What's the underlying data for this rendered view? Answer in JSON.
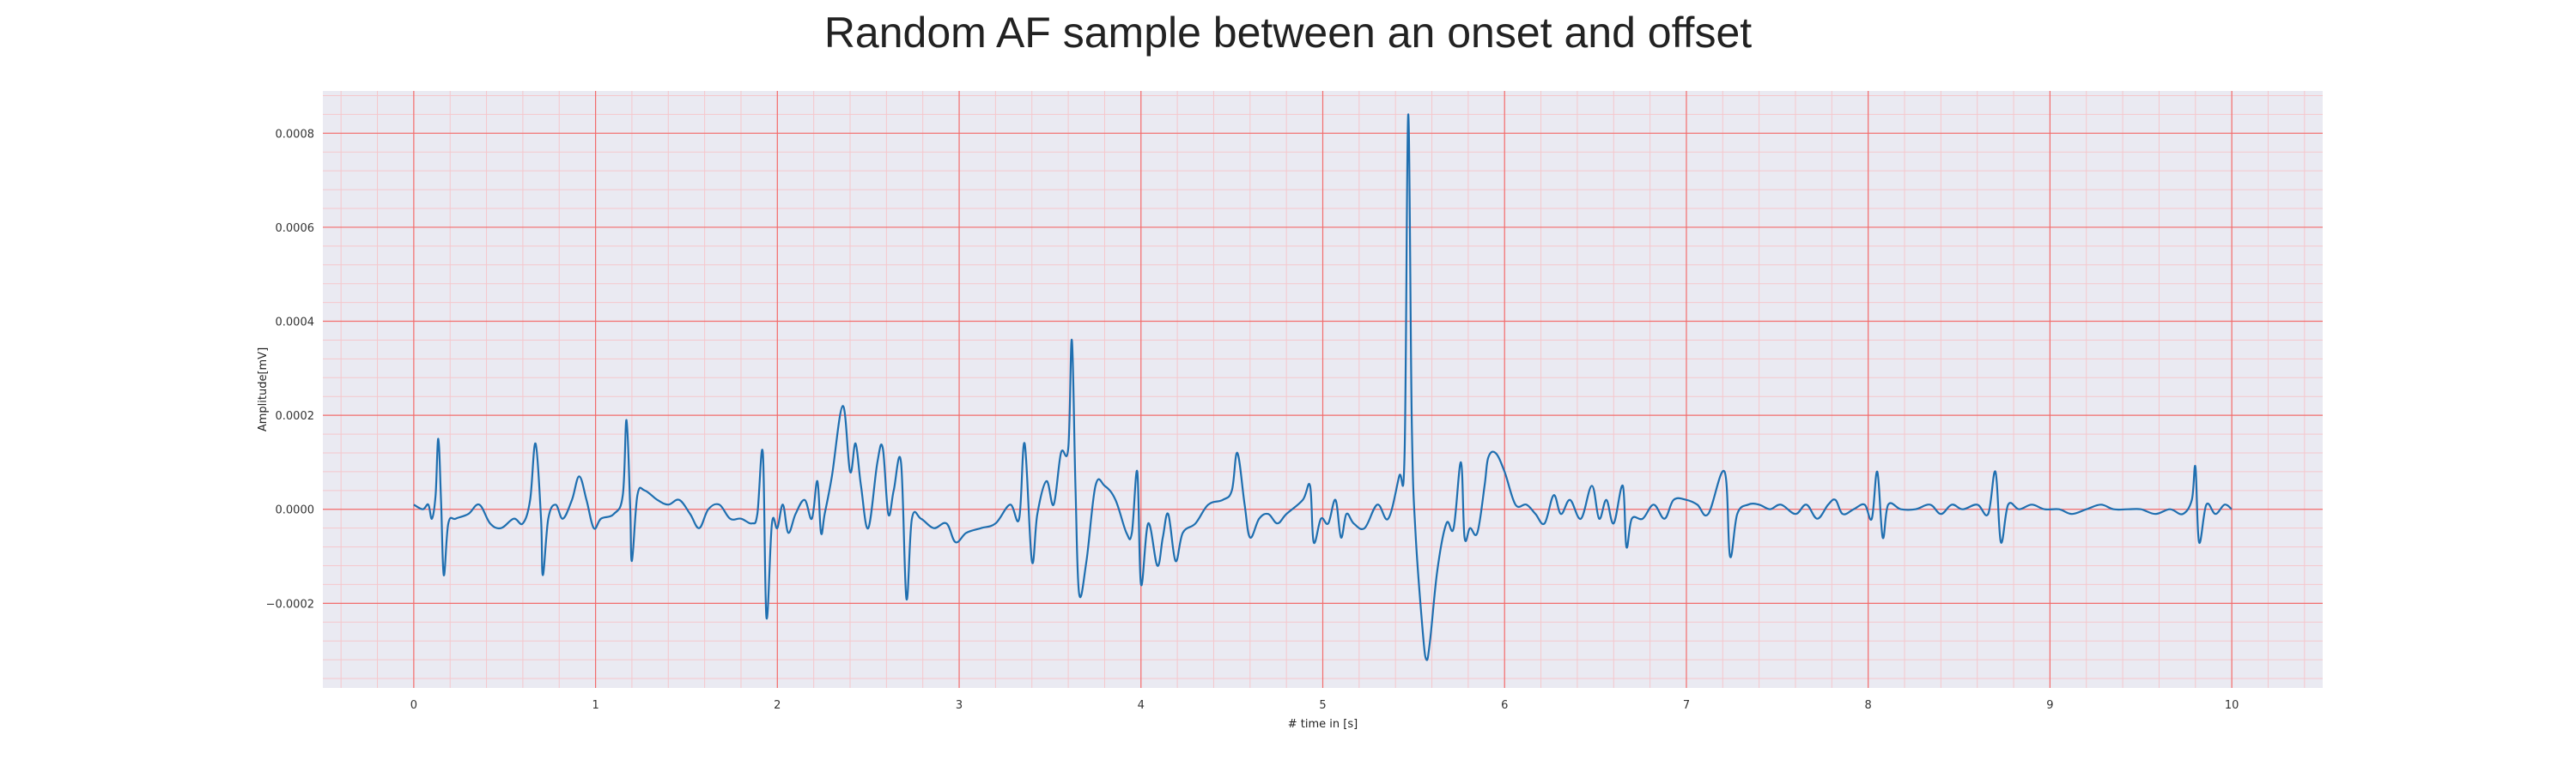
{
  "chart_data": {
    "type": "line",
    "title": "Random AF sample between an onset and offset",
    "xlabel": "# time in [s]",
    "ylabel": "Amplitude[mV]",
    "xlim": [
      -0.5,
      10.5
    ],
    "ylim": [
      -0.00038,
      0.00089
    ],
    "x_ticks": [
      0,
      1,
      2,
      3,
      4,
      5,
      6,
      7,
      8,
      9,
      10
    ],
    "x_tick_labels": [
      "0",
      "1",
      "2",
      "3",
      "4",
      "5",
      "6",
      "7",
      "8",
      "9",
      "10"
    ],
    "y_ticks": [
      -0.0002,
      0.0,
      0.0002,
      0.0004,
      0.0006,
      0.0008
    ],
    "y_tick_labels": [
      "−0.0002",
      "0.0000",
      "0.0002",
      "0.0004",
      "0.0006",
      "0.0008"
    ],
    "grid": true,
    "minor_grid": true,
    "colors": {
      "line": "#1f6fb0",
      "background": "#eaeaf2",
      "major_grid": "#f26d6d",
      "minor_grid": "#f5c7cc"
    },
    "series": [
      {
        "points": [
          [
            0.0,
            1e-05
          ],
          [
            0.05,
            0.0
          ],
          [
            0.08,
            1e-05
          ],
          [
            0.1,
            -2e-05
          ],
          [
            0.12,
            3e-05
          ],
          [
            0.135,
            0.00015
          ],
          [
            0.15,
            2e-05
          ],
          [
            0.165,
            -0.00014
          ],
          [
            0.19,
            -3e-05
          ],
          [
            0.23,
            -2e-05
          ],
          [
            0.3,
            -1e-05
          ],
          [
            0.36,
            1e-05
          ],
          [
            0.42,
            -3e-05
          ],
          [
            0.48,
            -4e-05
          ],
          [
            0.55,
            -2e-05
          ],
          [
            0.6,
            -3e-05
          ],
          [
            0.64,
            2e-05
          ],
          [
            0.67,
            0.00014
          ],
          [
            0.7,
            -2e-05
          ],
          [
            0.71,
            -0.00014
          ],
          [
            0.74,
            -2e-05
          ],
          [
            0.78,
            1e-05
          ],
          [
            0.82,
            -2e-05
          ],
          [
            0.87,
            2e-05
          ],
          [
            0.91,
            7e-05
          ],
          [
            0.95,
            2e-05
          ],
          [
            0.99,
            -4e-05
          ],
          [
            1.03,
            -2e-05
          ],
          [
            1.1,
            -1e-05
          ],
          [
            1.15,
            3e-05
          ],
          [
            1.17,
            0.00019
          ],
          [
            1.19,
            1e-05
          ],
          [
            1.2,
            -0.00011
          ],
          [
            1.23,
            3e-05
          ],
          [
            1.27,
            4e-05
          ],
          [
            1.34,
            2e-05
          ],
          [
            1.4,
            1e-05
          ],
          [
            1.46,
            2e-05
          ],
          [
            1.52,
            -1e-05
          ],
          [
            1.57,
            -4e-05
          ],
          [
            1.62,
            0.0
          ],
          [
            1.68,
            1e-05
          ],
          [
            1.74,
            -2e-05
          ],
          [
            1.8,
            -2e-05
          ],
          [
            1.86,
            -3e-05
          ],
          [
            1.89,
            -1e-05
          ],
          [
            1.92,
            0.00012
          ],
          [
            1.94,
            -0.00023
          ],
          [
            1.97,
            -3e-05
          ],
          [
            2.0,
            -4e-05
          ],
          [
            2.03,
            1e-05
          ],
          [
            2.06,
            -5e-05
          ],
          [
            2.1,
            -1e-05
          ],
          [
            2.15,
            2e-05
          ],
          [
            2.19,
            -2e-05
          ],
          [
            2.22,
            6e-05
          ],
          [
            2.24,
            -5e-05
          ],
          [
            2.26,
            -1e-05
          ],
          [
            2.3,
            7e-05
          ],
          [
            2.36,
            0.00022
          ],
          [
            2.4,
            8e-05
          ],
          [
            2.43,
            0.00014
          ],
          [
            2.46,
            5e-05
          ],
          [
            2.5,
            -4e-05
          ],
          [
            2.55,
            0.0001
          ],
          [
            2.58,
            0.00013
          ],
          [
            2.61,
            -1e-05
          ],
          [
            2.64,
            4e-05
          ],
          [
            2.68,
            0.0001
          ],
          [
            2.71,
            -0.00019
          ],
          [
            2.74,
            -2e-05
          ],
          [
            2.79,
            -2e-05
          ],
          [
            2.86,
            -4e-05
          ],
          [
            2.93,
            -3e-05
          ],
          [
            2.98,
            -7e-05
          ],
          [
            3.04,
            -5e-05
          ],
          [
            3.12,
            -4e-05
          ],
          [
            3.2,
            -3e-05
          ],
          [
            3.28,
            1e-05
          ],
          [
            3.33,
            -2e-05
          ],
          [
            3.36,
            0.00014
          ],
          [
            3.4,
            -0.00011
          ],
          [
            3.43,
            -1e-05
          ],
          [
            3.48,
            6e-05
          ],
          [
            3.52,
            1e-05
          ],
          [
            3.56,
            0.00012
          ],
          [
            3.6,
            0.00013
          ],
          [
            3.62,
            0.00036
          ],
          [
            3.64,
            4e-05
          ],
          [
            3.66,
            -0.00018
          ],
          [
            3.7,
            -0.00011
          ],
          [
            3.75,
            5e-05
          ],
          [
            3.8,
            5e-05
          ],
          [
            3.86,
            2e-05
          ],
          [
            3.92,
            -5e-05
          ],
          [
            3.95,
            -5e-05
          ],
          [
            3.98,
            8e-05
          ],
          [
            4.0,
            -0.00016
          ],
          [
            4.04,
            -3e-05
          ],
          [
            4.09,
            -0.00012
          ],
          [
            4.12,
            -6e-05
          ],
          [
            4.15,
            -1e-05
          ],
          [
            4.19,
            -0.00011
          ],
          [
            4.23,
            -5e-05
          ],
          [
            4.3,
            -3e-05
          ],
          [
            4.37,
            1e-05
          ],
          [
            4.45,
            2e-05
          ],
          [
            4.5,
            4e-05
          ],
          [
            4.53,
            0.00012
          ],
          [
            4.57,
            1e-05
          ],
          [
            4.6,
            -6e-05
          ],
          [
            4.65,
            -2e-05
          ],
          [
            4.7,
            -1e-05
          ],
          [
            4.75,
            -3e-05
          ],
          [
            4.8,
            -1e-05
          ],
          [
            4.89,
            2e-05
          ],
          [
            4.93,
            5e-05
          ],
          [
            4.95,
            -7e-05
          ],
          [
            4.99,
            -2e-05
          ],
          [
            5.03,
            -3e-05
          ],
          [
            5.07,
            2e-05
          ],
          [
            5.1,
            -6e-05
          ],
          [
            5.13,
            -1e-05
          ],
          [
            5.17,
            -3e-05
          ],
          [
            5.23,
            -4e-05
          ],
          [
            5.3,
            1e-05
          ],
          [
            5.36,
            -2e-05
          ],
          [
            5.42,
            7e-05
          ],
          [
            5.45,
            0.00012
          ],
          [
            5.47,
            0.00084
          ],
          [
            5.49,
            0.00018
          ],
          [
            5.51,
            -5e-05
          ],
          [
            5.55,
            -0.00026
          ],
          [
            5.57,
            -0.00032
          ],
          [
            5.59,
            -0.00028
          ],
          [
            5.63,
            -0.00013
          ],
          [
            5.68,
            -3e-05
          ],
          [
            5.72,
            -4e-05
          ],
          [
            5.76,
            0.0001
          ],
          [
            5.78,
            -6e-05
          ],
          [
            5.81,
            -4e-05
          ],
          [
            5.85,
            -5e-05
          ],
          [
            5.89,
            5e-05
          ],
          [
            5.91,
            0.00011
          ],
          [
            5.95,
            0.00012
          ],
          [
            6.0,
            8e-05
          ],
          [
            6.06,
            1e-05
          ],
          [
            6.12,
            1e-05
          ],
          [
            6.17,
            -1e-05
          ],
          [
            6.22,
            -3e-05
          ],
          [
            6.27,
            3e-05
          ],
          [
            6.31,
            -1e-05
          ],
          [
            6.36,
            2e-05
          ],
          [
            6.42,
            -2e-05
          ],
          [
            6.48,
            5e-05
          ],
          [
            6.52,
            -2e-05
          ],
          [
            6.56,
            2e-05
          ],
          [
            6.6,
            -3e-05
          ],
          [
            6.65,
            5e-05
          ],
          [
            6.67,
            -8e-05
          ],
          [
            6.7,
            -2e-05
          ],
          [
            6.76,
            -2e-05
          ],
          [
            6.82,
            1e-05
          ],
          [
            6.88,
            -2e-05
          ],
          [
            6.93,
            2e-05
          ],
          [
            7.0,
            2e-05
          ],
          [
            7.06,
            1e-05
          ],
          [
            7.12,
            -1e-05
          ],
          [
            7.21,
            8e-05
          ],
          [
            7.24,
            -0.0001
          ],
          [
            7.28,
            -1e-05
          ],
          [
            7.34,
            1e-05
          ],
          [
            7.4,
            1e-05
          ],
          [
            7.46,
            0.0
          ],
          [
            7.52,
            1e-05
          ],
          [
            7.6,
            -1e-05
          ],
          [
            7.66,
            1e-05
          ],
          [
            7.72,
            -2e-05
          ],
          [
            7.78,
            1e-05
          ],
          [
            7.82,
            2e-05
          ],
          [
            7.86,
            -1e-05
          ],
          [
            7.92,
            0.0
          ],
          [
            7.98,
            1e-05
          ],
          [
            8.02,
            -2e-05
          ],
          [
            8.05,
            8e-05
          ],
          [
            8.08,
            -6e-05
          ],
          [
            8.11,
            1e-05
          ],
          [
            8.18,
            0.0
          ],
          [
            8.26,
            0.0
          ],
          [
            8.34,
            1e-05
          ],
          [
            8.4,
            -1e-05
          ],
          [
            8.46,
            1e-05
          ],
          [
            8.52,
            0.0
          ],
          [
            8.6,
            1e-05
          ],
          [
            8.66,
            -1e-05
          ],
          [
            8.7,
            8e-05
          ],
          [
            8.73,
            -7e-05
          ],
          [
            8.77,
            1e-05
          ],
          [
            8.83,
            0.0
          ],
          [
            8.9,
            1e-05
          ],
          [
            8.97,
            0.0
          ],
          [
            9.05,
            0.0
          ],
          [
            9.12,
            -1e-05
          ],
          [
            9.2,
            0.0
          ],
          [
            9.28,
            1e-05
          ],
          [
            9.35,
            0.0
          ],
          [
            9.43,
            0.0
          ],
          [
            9.5,
            0.0
          ],
          [
            9.58,
            -1e-05
          ],
          [
            9.66,
            0.0
          ],
          [
            9.73,
            -1e-05
          ],
          [
            9.78,
            2e-05
          ],
          [
            9.8,
            9e-05
          ],
          [
            9.82,
            -7e-05
          ],
          [
            9.86,
            1e-05
          ],
          [
            9.91,
            -1e-05
          ],
          [
            9.96,
            1e-05
          ],
          [
            10.0,
            0.0
          ]
        ]
      }
    ]
  }
}
